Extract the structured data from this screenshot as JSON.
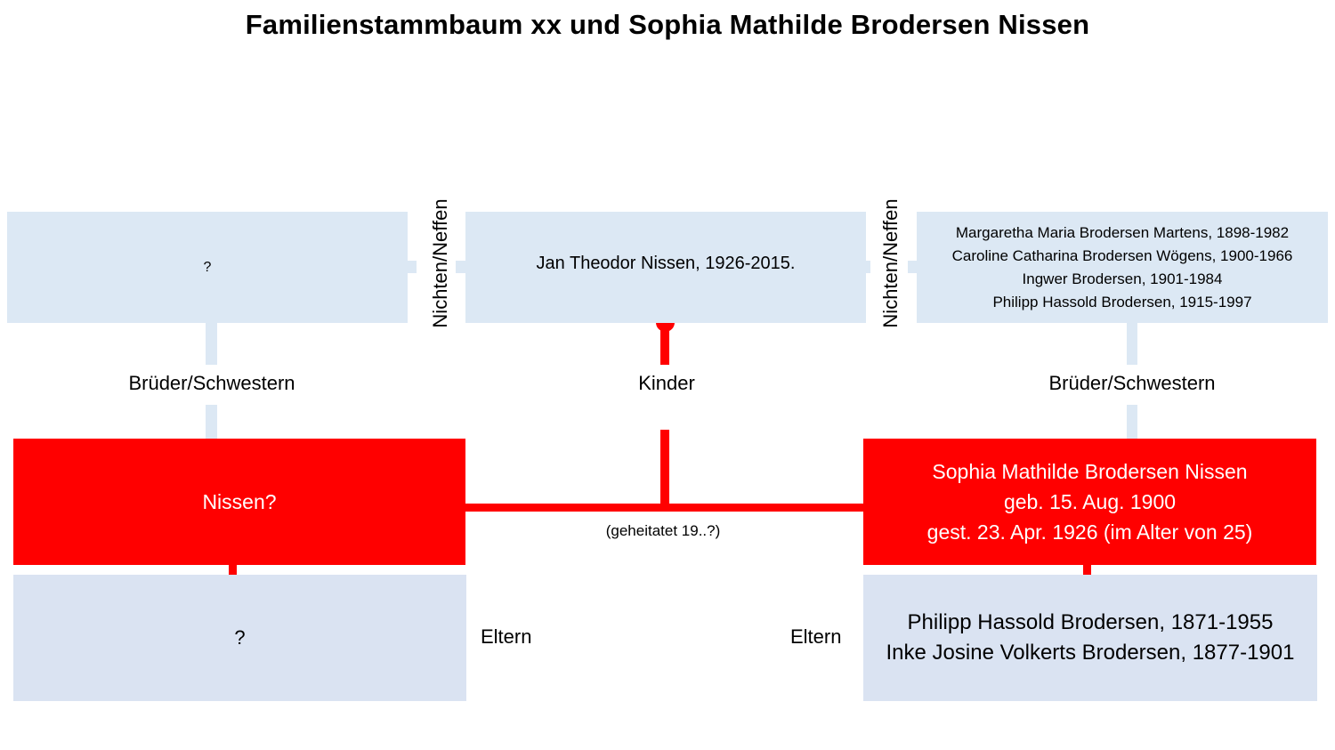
{
  "title": "Familienstammbaum xx und Sophia Mathilde Brodersen Nissen",
  "left_siblings_children": {
    "text": "?"
  },
  "nieces_nephews_left": "Nichten/Neffen",
  "children_box": {
    "text": "Jan Theodor Nissen, 1926-2015."
  },
  "nieces_nephews_right": "Nichten/Neffen",
  "right_siblings": {
    "lines": [
      "Margaretha Maria Brodersen Martens, 1898-1982",
      "Caroline Catharina Brodersen Wögens, 1900-1966",
      "Ingwer Brodersen, 1901-1984",
      "Philipp Hassold Brodersen, 1915-1997"
    ]
  },
  "siblings_label_left": "Brüder/Schwestern",
  "children_label": "Kinder",
  "siblings_label_right": "Brüder/Schwestern",
  "spouse_left": {
    "text": "Nissen?"
  },
  "spouse_right": {
    "lines": [
      "Sophia Mathilde Brodersen Nissen",
      "geb. 15. Aug. 1900",
      "gest. 23. Apr. 1926 (im Alter von 25)"
    ]
  },
  "marriage_label": "(geheitatet 19..?)",
  "parents_left": {
    "text": "?"
  },
  "parents_label_left": "Eltern",
  "parents_label_right": "Eltern",
  "parents_right": {
    "lines": [
      "Philipp Hassold Brodersen, 1871-1955",
      "Inke Josine Volkerts Brodersen, 1877-1901"
    ]
  },
  "colors": {
    "highlight": "#ff0000",
    "box_light": "#dce8f4",
    "box_parents": "#dae3f2"
  }
}
